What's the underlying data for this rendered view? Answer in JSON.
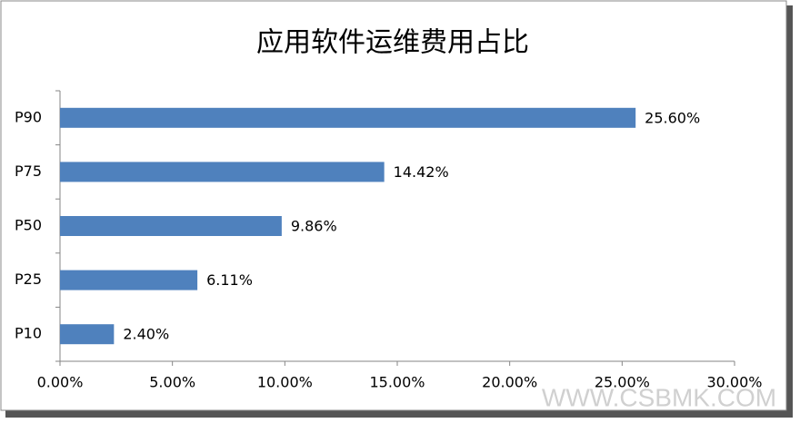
{
  "chart_data": {
    "type": "bar",
    "orientation": "horizontal",
    "title": "应用软件运维费用占比",
    "categories": [
      "P90",
      "P75",
      "P50",
      "P25",
      "P10"
    ],
    "values": [
      25.6,
      14.42,
      9.86,
      6.11,
      2.4
    ],
    "value_labels": [
      "25.60%",
      "14.42%",
      "9.86%",
      "6.11%",
      "2.40%"
    ],
    "color": "#4f81bd",
    "xlim": [
      0,
      30
    ],
    "xticks": [
      {
        "value": 0,
        "label": "0.00%"
      },
      {
        "value": 5,
        "label": "5.00%"
      },
      {
        "value": 10,
        "label": "10.00%"
      },
      {
        "value": 15,
        "label": "15.00%"
      },
      {
        "value": 20,
        "label": "20.00%"
      },
      {
        "value": 25,
        "label": "25.00%"
      },
      {
        "value": 30,
        "label": "30.00%"
      }
    ],
    "grid": false,
    "watermark": "WWW.CSBMK.COM"
  }
}
